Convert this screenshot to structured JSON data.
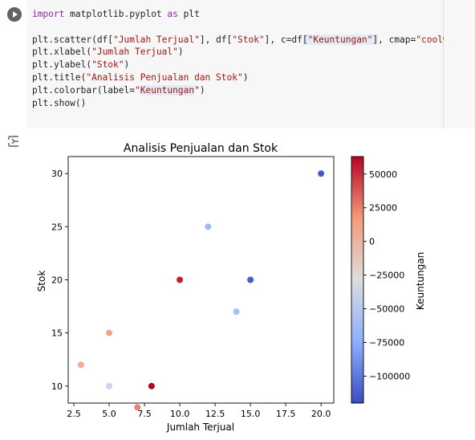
{
  "code_cell": {
    "run_button_icon": "play-icon",
    "lines": [
      {
        "segments": [
          {
            "t": "import",
            "c": "kw"
          },
          {
            "t": " matplotlib.pyplot ",
            "c": ""
          },
          {
            "t": "as",
            "c": "kw"
          },
          {
            "t": " plt",
            "c": ""
          }
        ]
      },
      {
        "segments": []
      },
      {
        "segments": [
          {
            "t": "plt.scatter(df[",
            "c": ""
          },
          {
            "t": "\"Jumlah Terjual\"",
            "c": "str"
          },
          {
            "t": "], df[",
            "c": ""
          },
          {
            "t": "\"Stok\"",
            "c": "str"
          },
          {
            "t": "], c=df",
            "c": ""
          },
          {
            "t": "[",
            "c": "hl"
          },
          {
            "t": "\"Keuntungan\"",
            "c": "str hl"
          },
          {
            "t": "]",
            "c": "hl"
          },
          {
            "t": ", cmap=",
            "c": ""
          },
          {
            "t": "\"coolwarm\"",
            "c": "str"
          },
          {
            "t": ")",
            "c": ""
          }
        ]
      },
      {
        "segments": [
          {
            "t": "plt.xlabel(",
            "c": ""
          },
          {
            "t": "\"Jumlah Terjual\"",
            "c": "str"
          },
          {
            "t": ")",
            "c": ""
          }
        ]
      },
      {
        "segments": [
          {
            "t": "plt.ylabel(",
            "c": ""
          },
          {
            "t": "\"Stok\"",
            "c": "str"
          },
          {
            "t": ")",
            "c": ""
          }
        ]
      },
      {
        "segments": [
          {
            "t": "plt.title(",
            "c": ""
          },
          {
            "t": "\"Analisis Penjualan dan Stok\"",
            "c": "str"
          },
          {
            "t": ")",
            "c": ""
          }
        ]
      },
      {
        "segments": [
          {
            "t": "plt.colorbar(label=",
            "c": ""
          },
          {
            "t": "\"",
            "c": "str"
          },
          {
            "t": "Keuntungan",
            "c": "str hl"
          },
          {
            "t": "\"",
            "c": "str"
          },
          {
            "t": ")",
            "c": ""
          }
        ]
      },
      {
        "segments": [
          {
            "t": "plt.show()",
            "c": ""
          }
        ]
      }
    ]
  },
  "output": {
    "icon": "output-toggle-icon"
  },
  "chart_data": {
    "type": "scatter",
    "title": "Analisis Penjualan dan Stok",
    "xlabel": "Jumlah Terjual",
    "ylabel": "Stok",
    "xlim": [
      2.1,
      20.9
    ],
    "ylim": [
      8.4,
      31.6
    ],
    "xticks": [
      2.5,
      5.0,
      7.5,
      10.0,
      12.5,
      15.0,
      17.5,
      20.0
    ],
    "xtick_labels": [
      "2.5",
      "5.0",
      "7.5",
      "10.0",
      "12.5",
      "15.0",
      "17.5",
      "20.0"
    ],
    "yticks": [
      10,
      15,
      20,
      25,
      30
    ],
    "ytick_labels": [
      "10",
      "15",
      "20",
      "25",
      "30"
    ],
    "points": [
      {
        "x": 20,
        "y": 30,
        "c": -115000
      },
      {
        "x": 12,
        "y": 25,
        "c": -65000
      },
      {
        "x": 10,
        "y": 20,
        "c": 55000
      },
      {
        "x": 15,
        "y": 20,
        "c": -112000
      },
      {
        "x": 14,
        "y": 17,
        "c": -58000
      },
      {
        "x": 5,
        "y": 15,
        "c": 12000
      },
      {
        "x": 3,
        "y": 12,
        "c": 5000
      },
      {
        "x": 5,
        "y": 10,
        "c": -38000
      },
      {
        "x": 8,
        "y": 10,
        "c": 63000
      },
      {
        "x": 7,
        "y": 8,
        "c": 25000
      }
    ],
    "colorbar": {
      "label": "Keuntungan",
      "cmap": "coolwarm",
      "range": [
        -120000,
        63000
      ],
      "ticks": [
        50000,
        25000,
        0,
        -25000,
        -50000,
        -75000,
        -100000
      ],
      "tick_labels": [
        "50000",
        "25000",
        "0",
        "−25000",
        "−50000",
        "−75000",
        "−100000"
      ]
    },
    "grid": false,
    "legend": "none"
  }
}
